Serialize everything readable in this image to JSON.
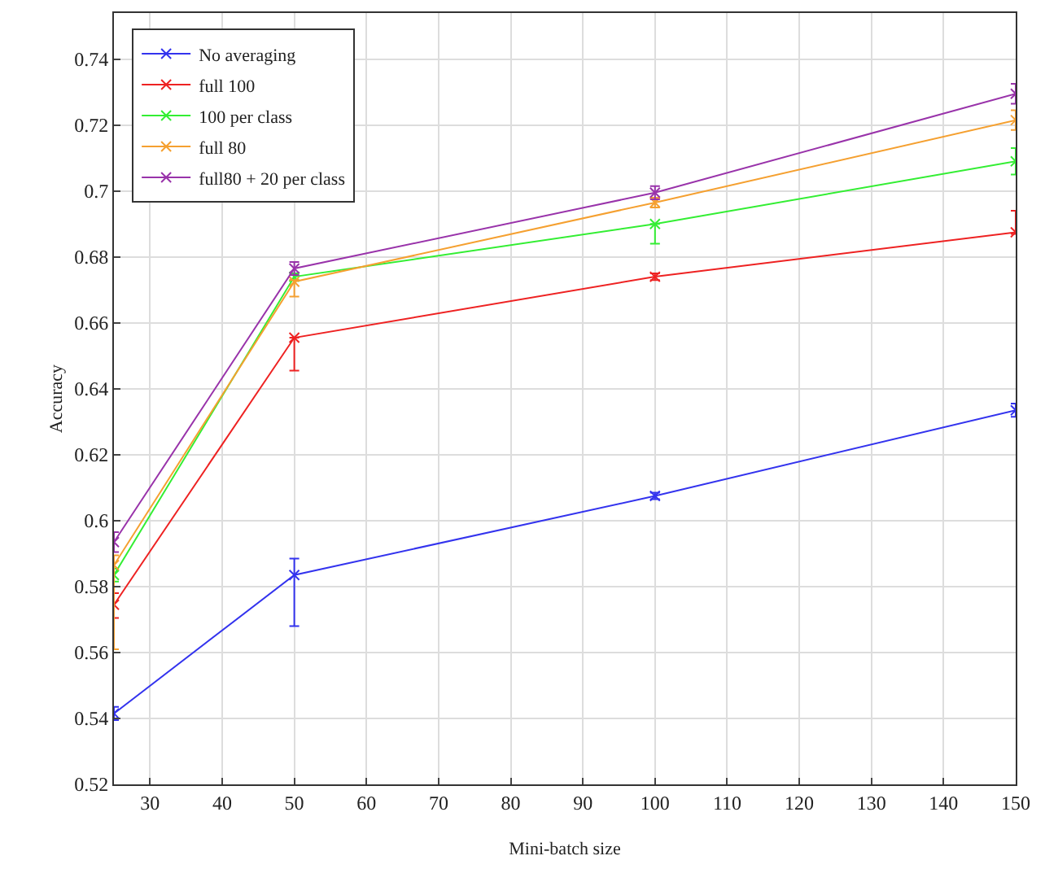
{
  "chart_data": {
    "type": "line",
    "xlabel": "Mini-batch size",
    "ylabel": "Accuracy",
    "x": [
      25,
      50,
      100,
      150
    ],
    "xlim": [
      25,
      150
    ],
    "xticks": [
      30,
      40,
      50,
      60,
      70,
      80,
      90,
      100,
      110,
      120,
      130,
      140,
      150
    ],
    "ylim": [
      0.52,
      0.754
    ],
    "yticks": [
      0.52,
      0.54,
      0.56,
      0.58,
      0.6,
      0.62,
      0.64,
      0.66,
      0.68,
      0.7,
      0.72,
      0.74
    ],
    "grid": true,
    "legend": "top left",
    "marker": "cross",
    "line_style": "solid",
    "series": [
      {
        "name": "No averaging",
        "color": "#3333ee",
        "values": [
          0.5415,
          0.5835,
          0.6075,
          0.6335
        ],
        "errors": [
          0.002,
          [
            0.568,
            0.5885
          ],
          0.001,
          0.002
        ]
      },
      {
        "name": "full 100",
        "color": "#ee2222",
        "values": [
          0.5745,
          0.6555,
          0.674,
          0.6875
        ],
        "errors": [
          [
            0.5705,
            0.578
          ],
          [
            0.6455,
            0.6555
          ],
          0.001,
          [
            0.687,
            0.694
          ]
        ]
      },
      {
        "name": "100 per class",
        "color": "#33ee33",
        "values": [
          0.5835,
          0.674,
          0.69,
          0.709
        ],
        "errors": [
          0.002,
          0.001,
          [
            0.684,
            0.69
          ],
          [
            0.705,
            0.713
          ]
        ]
      },
      {
        "name": "full 80",
        "color": "#f5a030",
        "values": [
          0.5865,
          0.6725,
          0.6965,
          0.7215
        ],
        "errors": [
          [
            0.561,
            0.5895
          ],
          [
            0.668,
            0.673
          ],
          [
            0.695,
            0.698
          ],
          0.003
        ]
      },
      {
        "name": "full80 + 20 per class",
        "color": "#9933aa",
        "values": [
          0.5935,
          0.6765,
          0.6995,
          0.7295
        ],
        "errors": [
          0.003,
          0.002,
          0.002,
          0.003
        ]
      }
    ]
  }
}
